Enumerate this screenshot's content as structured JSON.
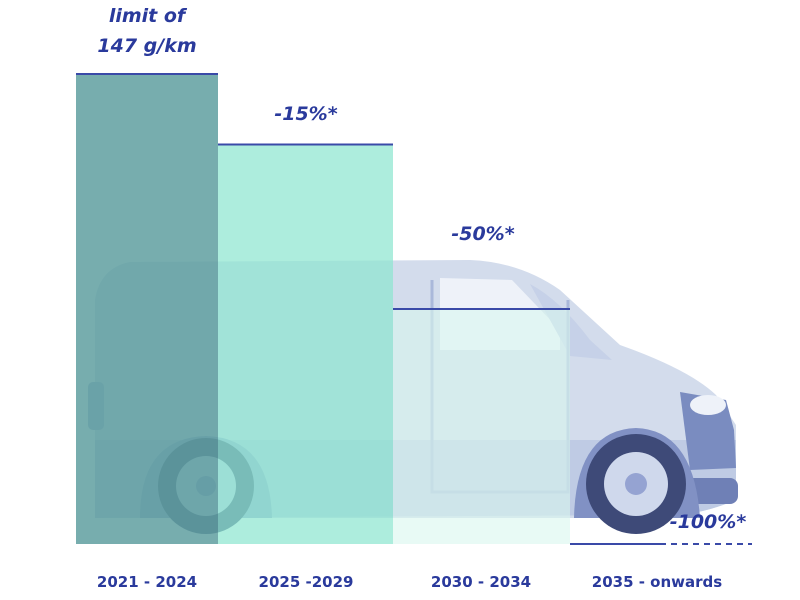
{
  "chart_data": {
    "type": "bar",
    "categories": [
      "2021 - 2024",
      "2025 -2029",
      "2030 - 2034",
      "2035 - onwards"
    ],
    "values": [
      100,
      85,
      50,
      0
    ],
    "labels": [
      [
        "limit of",
        "147 g/km"
      ],
      [
        "-15%*"
      ],
      [
        "-50%*"
      ],
      [
        "-100%*"
      ]
    ],
    "ylim": [
      0,
      100
    ],
    "title": "",
    "xlabel": "",
    "ylabel": "",
    "grid": false,
    "legend": "none"
  },
  "colors": {
    "bars": [
      "#5f9fa0",
      "#8ee6d0",
      "#d8f6ee",
      "#8a9ad8"
    ],
    "bar_opacity": [
      0.85,
      0.72,
      0.6,
      0.9
    ],
    "line": "#3a4aa8",
    "text": "#2a3a9c",
    "van_body": "#d3dcec",
    "van_dark": "#8496c4"
  }
}
